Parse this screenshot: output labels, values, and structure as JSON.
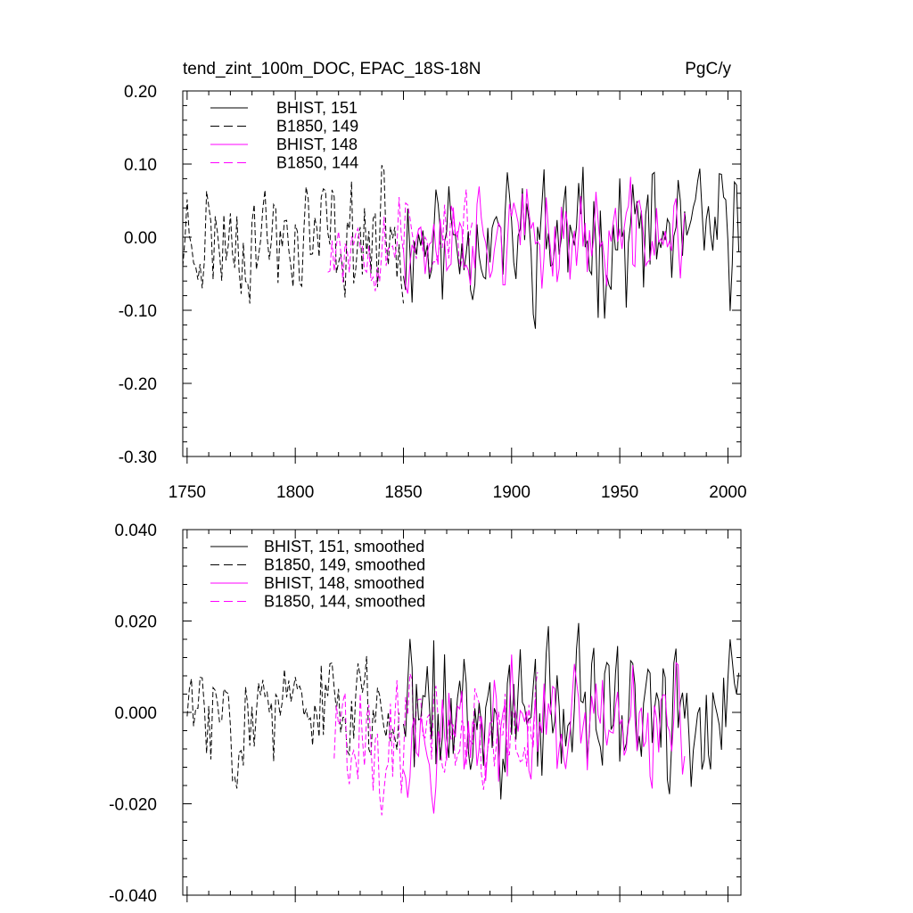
{
  "chart_data": [
    {
      "type": "line",
      "title": "tend_zint_100m_DOC, EPAC_18S-18N",
      "units": "PgC/y",
      "xlabel": "",
      "ylabel": "",
      "xlim": [
        1748,
        2006
      ],
      "ylim": [
        -0.3,
        0.2
      ],
      "xticks": [
        1750,
        1800,
        1850,
        1900,
        1950,
        2000
      ],
      "xtick_labels": [
        "1750",
        "1800",
        "1850",
        "1900",
        "1950",
        "2000"
      ],
      "yticks": [
        -0.3,
        -0.2,
        -0.1,
        0.0,
        0.1,
        0.2
      ],
      "ytick_labels": [
        "-0.30",
        "-0.20",
        "-0.10",
        "0.00",
        "0.10",
        "0.20"
      ],
      "legend_position": "top-left",
      "series": [
        {
          "name": "BHIST, 151",
          "color": "#000000",
          "dash": "solid",
          "x_start": 1850,
          "x_end": 2005,
          "amplitude": 0.09,
          "seed": 11
        },
        {
          "name": "B1850, 149",
          "color": "#000000",
          "dash": "dashed",
          "x_start": 1748,
          "x_end": 1850,
          "amplitude": 0.08,
          "seed": 23
        },
        {
          "name": "BHIST, 148",
          "color": "#ff00ff",
          "dash": "solid",
          "x_start": 1850,
          "x_end": 1980,
          "amplitude": 0.065,
          "seed": 37
        },
        {
          "name": "B1850, 144",
          "color": "#ff00ff",
          "dash": "dashed",
          "x_start": 1815,
          "x_end": 1882,
          "amplitude": 0.065,
          "seed": 53
        }
      ]
    },
    {
      "type": "line",
      "title": "",
      "units": "",
      "xlabel": "",
      "ylabel": "",
      "xlim": [
        1748,
        2006
      ],
      "ylim": [
        -0.04,
        0.04
      ],
      "xticks": [
        1750,
        1800,
        1850,
        1900,
        1950,
        2000
      ],
      "yticks": [
        -0.04,
        -0.02,
        0.0,
        0.02,
        0.04
      ],
      "ytick_labels": [
        "-0.040",
        "-0.020",
        "0.000",
        "0.020",
        "0.040"
      ],
      "legend_position": "top-left",
      "series": [
        {
          "name": "BHIST, 151, smoothed",
          "color": "#000000",
          "dash": "solid",
          "x_start": 1850,
          "x_end": 2005,
          "amplitude": 0.016,
          "offset": 0.0,
          "seed": 71
        },
        {
          "name": "B1850, 149, smoothed",
          "color": "#000000",
          "dash": "dashed",
          "x_start": 1750,
          "x_end": 1848,
          "amplitude": 0.012,
          "offset": 0.0,
          "seed": 83
        },
        {
          "name": "BHIST, 148, smoothed",
          "color": "#ff00ff",
          "dash": "solid",
          "x_start": 1850,
          "x_end": 1980,
          "amplitude": 0.012,
          "offset": -0.004,
          "seed": 97
        },
        {
          "name": "B1850, 144, smoothed",
          "color": "#ff00ff",
          "dash": "dashed",
          "x_start": 1818,
          "x_end": 1912,
          "amplitude": 0.013,
          "offset": -0.005,
          "seed": 101
        }
      ]
    }
  ]
}
